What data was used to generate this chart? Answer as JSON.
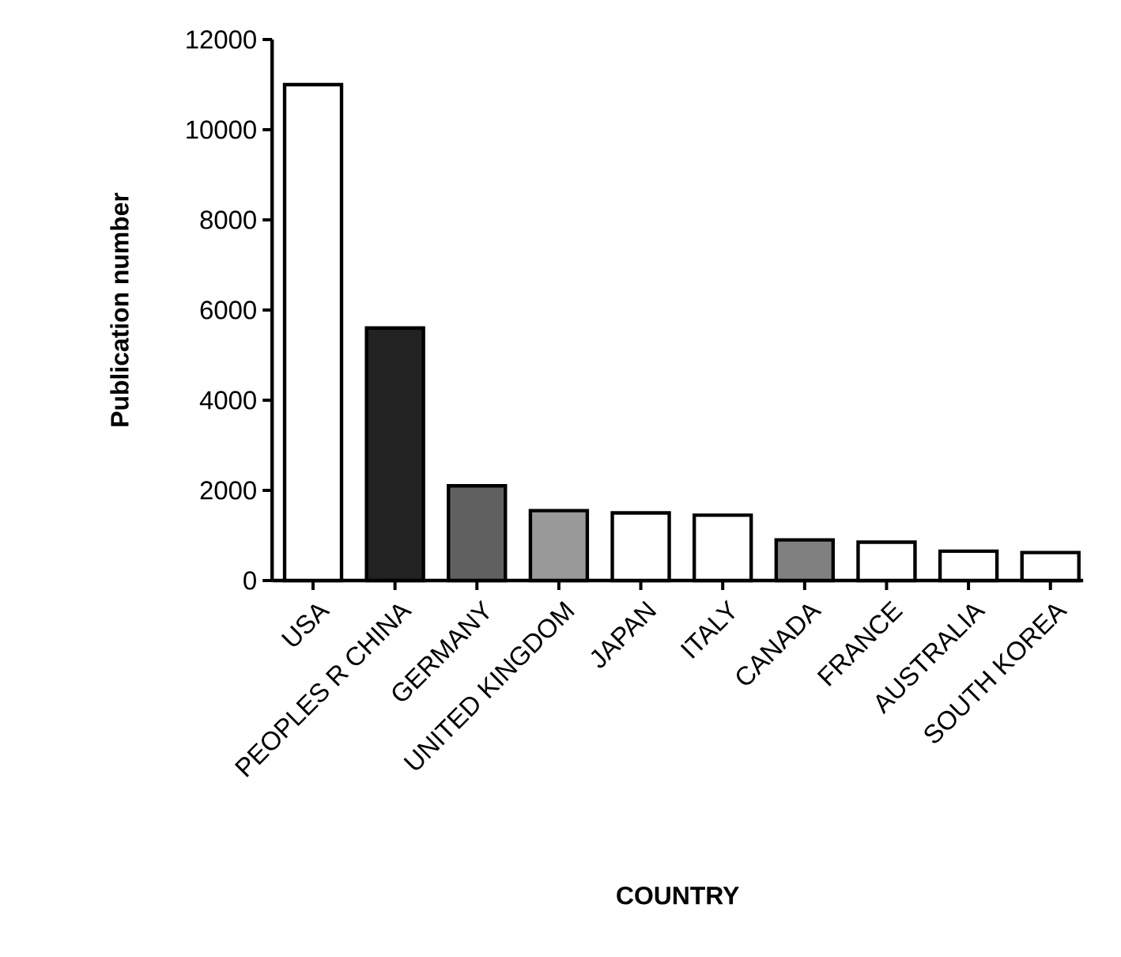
{
  "chart_data": {
    "type": "bar",
    "xlabel": "COUNTRY",
    "ylabel": "Publication number",
    "categories": [
      "USA",
      "PEOPLES R CHINA",
      "GERMANY",
      "UNITED KINGDOM",
      "JAPAN",
      "ITALY",
      "CANADA",
      "FRANCE",
      "AUSTRALIA",
      "SOUTH KOREA"
    ],
    "values": [
      11000,
      5600,
      2100,
      1550,
      1500,
      1450,
      900,
      850,
      650,
      620
    ],
    "colors": [
      "#ffffff",
      "#222222",
      "#606060",
      "#999999",
      "#ffffff",
      "#ffffff",
      "#808080",
      "#ffffff",
      "#ffffff",
      "#ffffff"
    ],
    "ylim": [
      0,
      12000
    ],
    "yticks": [
      0,
      2000,
      4000,
      6000,
      8000,
      10000,
      12000
    ],
    "grid": false
  }
}
